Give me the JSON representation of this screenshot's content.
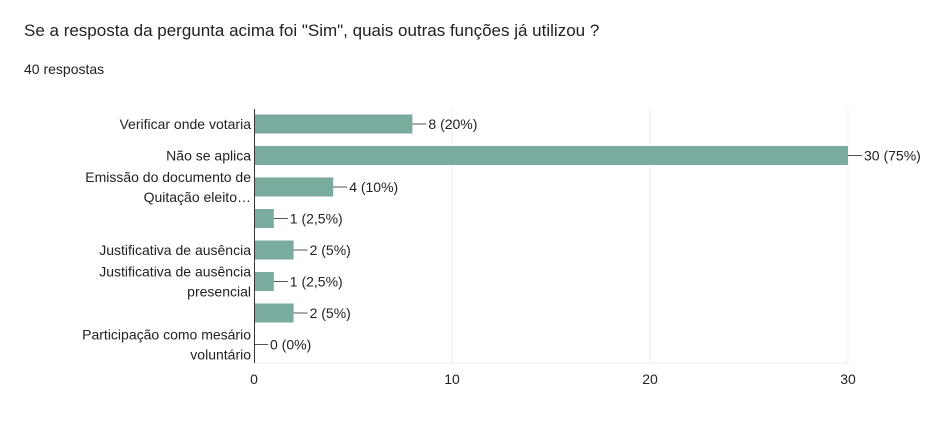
{
  "question": {
    "title": "Se a resposta da pergunta acima foi \"Sim\", quais outras funções já utilizou ?",
    "responses": "40 respostas"
  },
  "colors": {
    "bar": "#7aab9f",
    "gridline": "#ececec",
    "axis": "#333333",
    "text": "#222222"
  },
  "chart_data": {
    "type": "bar",
    "orientation": "horizontal",
    "categories": [
      [
        "Verificar onde votaria"
      ],
      [
        "Não se aplica"
      ],
      [
        "Emissão do documento de",
        "Quitação eleito…"
      ],
      [],
      [
        "Justificativa de ausência"
      ],
      [
        "Justificativa de ausência",
        "presencial"
      ],
      [],
      [
        "Participação como mesário",
        "voluntário"
      ]
    ],
    "values": [
      8,
      30,
      4,
      1,
      2,
      1,
      2,
      0
    ],
    "data_labels": [
      "8 (20%)",
      "30 (75%)",
      "4 (10%)",
      "1 (2,5%)",
      "2 (5%)",
      "1 (2,5%)",
      "2 (5%)",
      "0 (0%)"
    ],
    "xlim": [
      0,
      30
    ],
    "xticks": [
      0,
      10,
      20,
      30
    ],
    "grid": true,
    "legend": "none"
  }
}
